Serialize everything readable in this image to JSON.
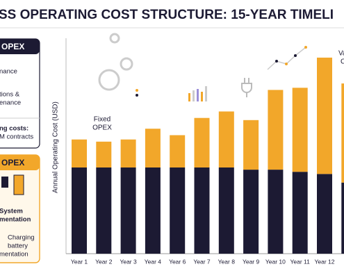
{
  "chart_data": {
    "type": "stacked-bar",
    "title": "SS OPERATING COST STRUCTURE: 15-YEAR TIMELI",
    "y_label": "Annual Operating Cost (USD)",
    "annotations": [
      [
        "Fixed",
        "OPEX"
      ],
      [
        "Va",
        "C"
      ]
    ],
    "categories": [
      "Year 1",
      "Year 2",
      "Year 3",
      "Year 4",
      "Year 6",
      "Year 7",
      "Year 8",
      "Year 9",
      "Year 10",
      "Year 11",
      "Year 12",
      "Ye"
    ],
    "series": [
      {
        "color": "#1c1a33",
        "values": [
          40,
          40,
          40,
          40,
          40,
          40,
          40,
          39,
          39,
          38,
          37,
          33
        ]
      },
      {
        "color": "#f2a72a",
        "values": [
          13,
          12,
          13,
          18,
          15,
          23,
          26,
          23,
          37,
          39,
          54,
          46
        ]
      }
    ],
    "ylim": [
      0,
      100
    ]
  },
  "panel": {
    "box1": {
      "header": "OPEX",
      "items": [
        "nance",
        "tions &",
        "enance"
      ],
      "note": [
        "ng costs:",
        "M contracts"
      ]
    },
    "box2": {
      "header": "OPEX",
      "items": [
        "System",
        "mentation"
      ],
      "note": [
        "Charging",
        "battery",
        "mentation"
      ]
    }
  }
}
